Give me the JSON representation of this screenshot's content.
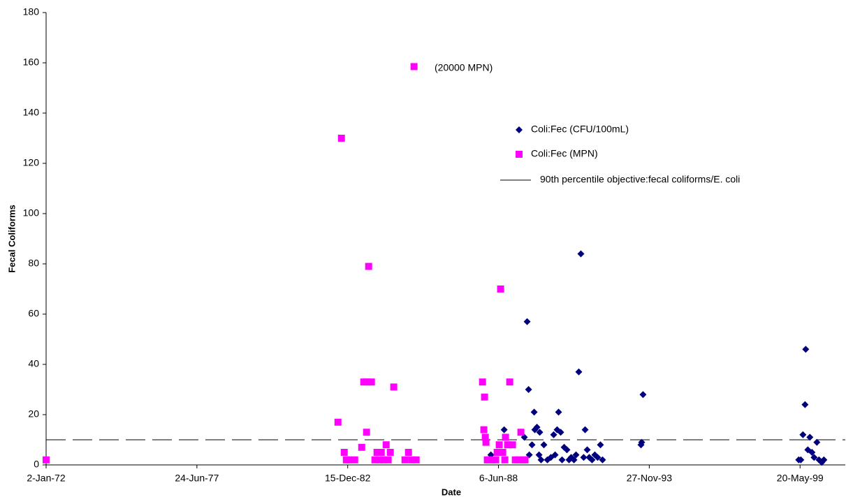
{
  "chart_data": {
    "type": "scatter",
    "x_label": "Date",
    "y_label": "Fecal Coliforms",
    "xlim": [
      26300,
      36900
    ],
    "ylim": [
      0,
      180
    ],
    "xticks": [
      {
        "value": 26300,
        "label": "2-Jan-72"
      },
      {
        "value": 28300,
        "label": "24-Jun-77"
      },
      {
        "value": 30300,
        "label": "15-Dec-82"
      },
      {
        "value": 32300,
        "label": "6-Jun-88"
      },
      {
        "value": 34300,
        "label": "27-Nov-93"
      },
      {
        "value": 36300,
        "label": "20-May-99"
      }
    ],
    "yticks": [
      0,
      20,
      40,
      60,
      80,
      100,
      120,
      140,
      160,
      180
    ],
    "series": [
      {
        "name": "Coli:Fec (CFU/100mL)",
        "color": "#00007f",
        "marker": "diamond",
        "x": [
          32171,
          32199,
          32375,
          32541,
          32643,
          32680,
          32699,
          32708,
          32745,
          32773,
          32782,
          32810,
          32838,
          32847,
          32865,
          32902,
          32949,
          32995,
          33032,
          33051,
          33078,
          33097,
          33125,
          33143,
          33171,
          33208,
          33236,
          33264,
          33301,
          33328,
          33365,
          33393,
          33430,
          33449,
          33477,
          33504,
          33541,
          33578,
          33615,
          33652,
          33680,
          34190,
          34199,
          34217,
          36282,
          36310,
          36338,
          36366,
          36375,
          36403,
          36430,
          36458,
          36486,
          36523,
          36551,
          36588,
          36616
        ],
        "values": [
          2,
          4,
          14,
          2,
          11,
          57,
          30,
          4,
          8,
          21,
          14,
          15,
          4,
          13,
          2,
          8,
          2,
          3,
          12,
          4,
          14,
          21,
          13,
          2,
          7,
          6,
          2,
          3,
          2,
          4,
          37,
          84,
          3,
          14,
          6,
          3,
          2,
          4,
          3,
          8,
          2,
          8,
          9,
          28,
          2,
          2,
          12,
          24,
          46,
          6,
          11,
          5,
          3,
          9,
          2,
          1,
          2
        ]
      },
      {
        "name": "Coli:Fec (MPN)",
        "color": "#ff00ff",
        "marker": "square",
        "x": [
          26300,
          30171,
          30217,
          30254,
          30282,
          30319,
          30393,
          30486,
          30513,
          30550,
          30560,
          30578,
          30615,
          30661,
          30689,
          30726,
          30745,
          30773,
          30810,
          30837,
          30865,
          30911,
          31060,
          31106,
          31152,
          31180,
          31208,
          32088,
          32106,
          32115,
          32125,
          32134,
          32152,
          32180,
          32217,
          32263,
          32282,
          32310,
          32328,
          32356,
          32384,
          32393,
          32421,
          32449,
          32486,
          32523,
          32560,
          32597,
          32625,
          32652
        ],
        "values": [
          2,
          17,
          130,
          5,
          2,
          2,
          2,
          7,
          33,
          13,
          33,
          79,
          33,
          2,
          5,
          2,
          5,
          2,
          8,
          2,
          5,
          31,
          2,
          5,
          2,
          158.5,
          2,
          33,
          14,
          27,
          11,
          9,
          2,
          2,
          2,
          2,
          5,
          8,
          70,
          5,
          2,
          11,
          8,
          33,
          8,
          2,
          2,
          13,
          2,
          2
        ]
      }
    ],
    "reference_line": {
      "name": "90th percentile objective:fecal coliforms/E. coli",
      "value": 10,
      "color": "#000000"
    },
    "annotations": [
      {
        "text": "(20000 MPN)"
      }
    ]
  }
}
